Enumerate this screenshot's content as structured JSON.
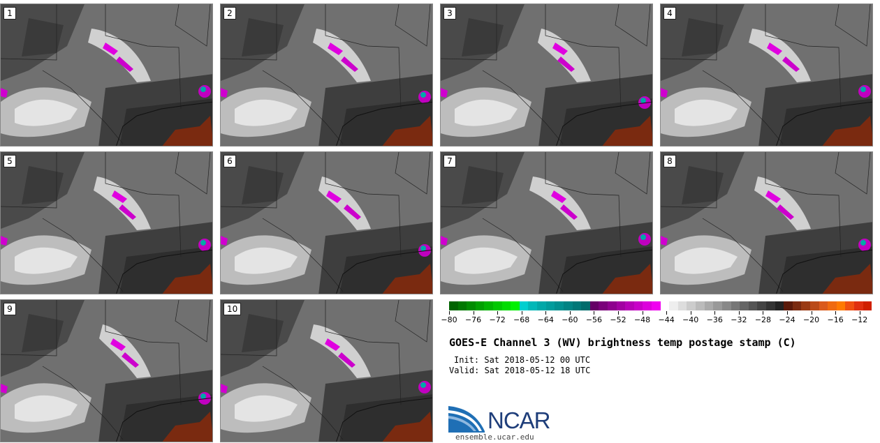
{
  "chart_data": {
    "type": "heatmap",
    "title": "GOES-E Channel 3 (WV) brightness temp postage stamp (C)",
    "init_text": "Init: Sat 2018-05-12 00 UTC",
    "valid_text": "Valid: Sat 2018-05-12 18 UTC",
    "units": "C",
    "members": [
      "1",
      "2",
      "3",
      "4",
      "5",
      "6",
      "7",
      "8",
      "9",
      "10"
    ],
    "colorbar": {
      "min": -80,
      "max": -10,
      "ticks": [
        -80,
        -76,
        -72,
        -68,
        -64,
        -60,
        -56,
        -52,
        -48,
        -44,
        -40,
        -36,
        -32,
        -28,
        -24,
        -20,
        -16,
        -12
      ],
      "colors": [
        "#006400",
        "#007800",
        "#008c00",
        "#00a000",
        "#00b400",
        "#00c800",
        "#00dc00",
        "#00f000",
        "#00cfcf",
        "#00b8b8",
        "#00a8a8",
        "#009c9c",
        "#009090",
        "#008484",
        "#007878",
        "#006c6c",
        "#660066",
        "#7a007a",
        "#8e008e",
        "#a200a2",
        "#b600b6",
        "#c800c8",
        "#dc00dc",
        "#f000f0",
        "#ffffff",
        "#eeeeee",
        "#dddddd",
        "#cccccc",
        "#bbbbbb",
        "#aaaaaa",
        "#999999",
        "#888888",
        "#777777",
        "#666666",
        "#555555",
        "#444444",
        "#333333",
        "#222222",
        "#5a1a0a",
        "#7a2a10",
        "#9a3a14",
        "#ba4a18",
        "#da5a1c",
        "#f06a10",
        "#ff7a00",
        "#f05010",
        "#e03010",
        "#d02000"
      ]
    }
  },
  "footer": {
    "logo_text": "NCAR",
    "url": "ensemble.ucar.edu"
  }
}
